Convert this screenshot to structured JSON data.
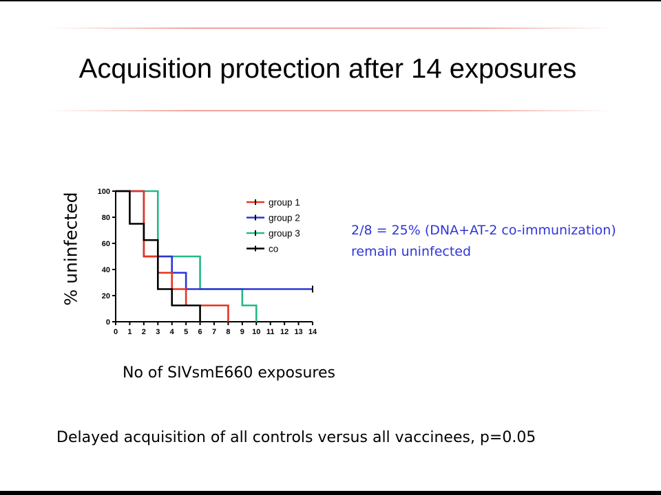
{
  "slide": {
    "title": "Acquisition protection after 14 exposures",
    "annotation_line1": "2/8 = 25% (DNA+AT-2 co-immunization)",
    "annotation_line2": "remain uninfected",
    "footnote": "Delayed acquisition of all controls versus all vaccinees, p=0.05"
  },
  "colors": {
    "group1": "#e8321e",
    "group2": "#2b35d6",
    "group3": "#22b889",
    "co": "#000000",
    "annotation": "#2f35d8"
  },
  "chart_data": {
    "type": "line",
    "style": "step (Kaplan-Meier survival)",
    "xlabel": "No of SIVsmE660 exposures",
    "ylabel": "% uninfected",
    "xlim": [
      0,
      14
    ],
    "ylim": [
      0,
      100
    ],
    "xticks": [
      0,
      1,
      2,
      3,
      4,
      5,
      6,
      7,
      8,
      9,
      10,
      11,
      12,
      13,
      14
    ],
    "yticks": [
      0,
      20,
      40,
      60,
      80,
      100
    ],
    "legend_position": "top-right",
    "grid": false,
    "series": [
      {
        "name": "group 1",
        "color_key": "group1",
        "steps": [
          [
            0,
            100
          ],
          [
            2,
            50
          ],
          [
            3,
            37.5
          ],
          [
            4,
            25
          ],
          [
            5,
            12.5
          ],
          [
            8,
            0
          ]
        ],
        "end_x": 8,
        "censored": []
      },
      {
        "name": "group 2",
        "color_key": "group2",
        "steps": [
          [
            0,
            100
          ],
          [
            2,
            50
          ],
          [
            4,
            37.5
          ],
          [
            5,
            25
          ]
        ],
        "end_x": 14,
        "censored": [
          14
        ]
      },
      {
        "name": "group 3",
        "color_key": "group3",
        "steps": [
          [
            0,
            100
          ],
          [
            3,
            50
          ],
          [
            6,
            25
          ],
          [
            9,
            12.5
          ],
          [
            10,
            0
          ]
        ],
        "end_x": 10,
        "censored": []
      },
      {
        "name": "co",
        "color_key": "co",
        "steps": [
          [
            0,
            100
          ],
          [
            1,
            75
          ],
          [
            2,
            62.5
          ],
          [
            3,
            25
          ],
          [
            4,
            12.5
          ],
          [
            6,
            0
          ]
        ],
        "end_x": 6,
        "censored": []
      }
    ]
  }
}
